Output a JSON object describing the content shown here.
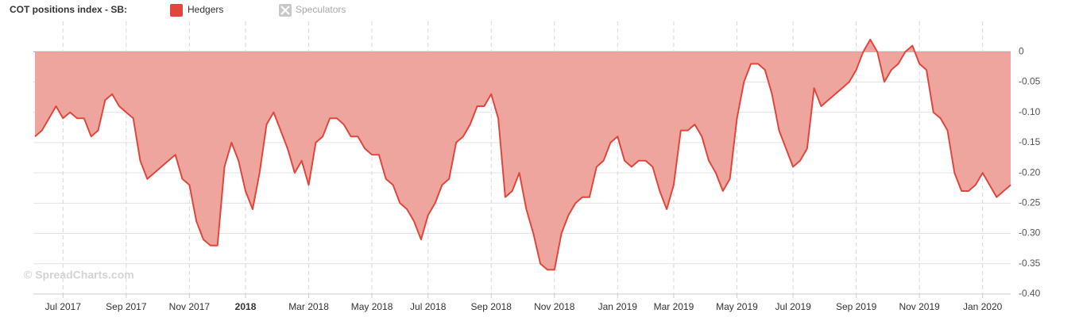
{
  "chart_data": {
    "type": "area",
    "title": "COT positions index - SB:",
    "watermark": "© SpreadCharts.com",
    "categories": [
      null,
      null,
      null,
      null,
      "Jul 2017",
      null,
      null,
      null,
      null,
      null,
      null,
      null,
      null,
      "Sep 2017",
      null,
      null,
      null,
      null,
      null,
      null,
      null,
      null,
      "Nov 2017",
      null,
      null,
      null,
      null,
      null,
      null,
      null,
      "2018",
      null,
      null,
      null,
      null,
      null,
      null,
      null,
      null,
      "Mar 2018",
      null,
      null,
      null,
      null,
      null,
      null,
      null,
      null,
      "May 2018",
      null,
      null,
      null,
      null,
      null,
      null,
      null,
      "Jul 2018",
      null,
      null,
      null,
      null,
      null,
      null,
      null,
      null,
      "Sep 2018",
      null,
      null,
      null,
      null,
      null,
      null,
      null,
      null,
      "Nov 2018",
      null,
      null,
      null,
      null,
      null,
      null,
      null,
      null,
      "Jan 2019",
      null,
      null,
      null,
      null,
      null,
      null,
      null,
      "Mar 2019",
      null,
      null,
      null,
      null,
      null,
      null,
      null,
      null,
      "May 2019",
      null,
      null,
      null,
      null,
      null,
      null,
      null,
      "Jul 2019",
      null,
      null,
      null,
      null,
      null,
      null,
      null,
      null,
      "Sep 2019",
      null,
      null,
      null,
      null,
      null,
      null,
      null,
      null,
      "Nov 2019",
      null,
      null,
      null,
      null,
      null,
      null,
      null,
      null,
      "Jan 2020",
      null,
      null,
      null,
      null
    ],
    "series": [
      {
        "name": "Hedgers",
        "color": "#e0463b",
        "fill": "#eea59e",
        "values": [
          -0.14,
          -0.13,
          -0.11,
          -0.09,
          -0.11,
          -0.1,
          -0.11,
          -0.11,
          -0.14,
          -0.13,
          -0.08,
          -0.07,
          -0.09,
          -0.1,
          -0.11,
          -0.18,
          -0.21,
          -0.2,
          -0.19,
          -0.18,
          -0.17,
          -0.21,
          -0.22,
          -0.28,
          -0.31,
          -0.32,
          -0.32,
          -0.19,
          -0.15,
          -0.18,
          -0.23,
          -0.26,
          -0.2,
          -0.12,
          -0.1,
          -0.13,
          -0.16,
          -0.2,
          -0.18,
          -0.22,
          -0.15,
          -0.14,
          -0.11,
          -0.11,
          -0.12,
          -0.14,
          -0.14,
          -0.16,
          -0.17,
          -0.17,
          -0.21,
          -0.22,
          -0.25,
          -0.26,
          -0.28,
          -0.31,
          -0.27,
          -0.25,
          -0.22,
          -0.21,
          -0.15,
          -0.14,
          -0.12,
          -0.09,
          -0.09,
          -0.07,
          -0.11,
          -0.24,
          -0.23,
          -0.2,
          -0.26,
          -0.3,
          -0.35,
          -0.36,
          -0.36,
          -0.3,
          -0.27,
          -0.25,
          -0.24,
          -0.24,
          -0.19,
          -0.18,
          -0.15,
          -0.14,
          -0.18,
          -0.19,
          -0.18,
          -0.18,
          -0.19,
          -0.23,
          -0.26,
          -0.22,
          -0.13,
          -0.13,
          -0.12,
          -0.14,
          -0.18,
          -0.2,
          -0.23,
          -0.21,
          -0.11,
          -0.05,
          -0.02,
          -0.02,
          -0.03,
          -0.07,
          -0.13,
          -0.16,
          -0.19,
          -0.18,
          -0.16,
          -0.06,
          -0.09,
          -0.08,
          -0.07,
          -0.06,
          -0.05,
          -0.03,
          0,
          0.02,
          0,
          -0.05,
          -0.03,
          -0.02,
          0,
          0.01,
          -0.02,
          -0.03,
          -0.1,
          -0.11,
          -0.13,
          -0.2,
          -0.23,
          -0.23,
          -0.22,
          -0.2,
          -0.22,
          -0.24,
          -0.23,
          -0.22
        ]
      }
    ],
    "hidden_series": [
      {
        "name": "Speculators",
        "color": "#bbbbbb"
      }
    ],
    "ylim": [
      -0.4,
      0.05
    ],
    "yticks": [
      0,
      -0.05,
      {
        "value": -0.1,
        "label": "-0.10"
      },
      -0.15,
      {
        "value": -0.2,
        "label": "-0.20"
      },
      -0.25,
      {
        "value": -0.3,
        "label": "-0.30"
      },
      -0.35,
      {
        "value": -0.4,
        "label": "-0.40"
      }
    ],
    "grid": true
  }
}
